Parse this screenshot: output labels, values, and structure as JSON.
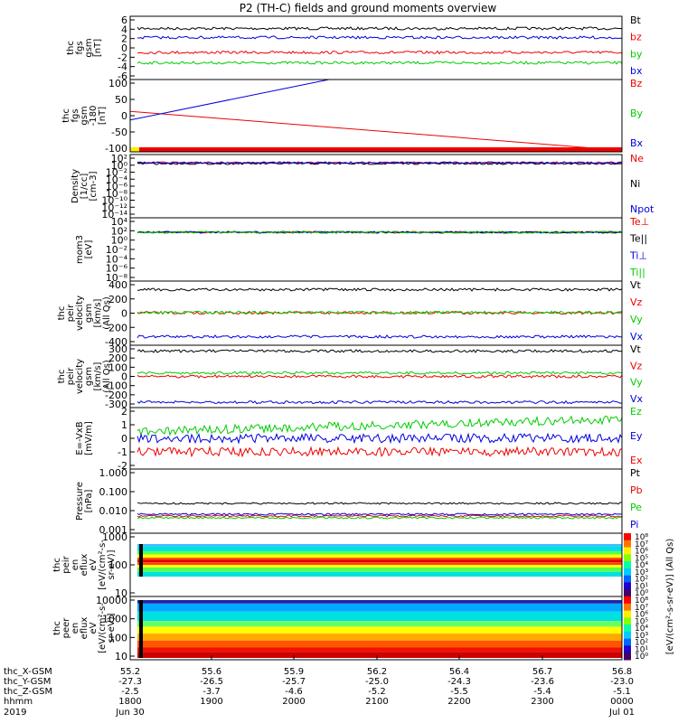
{
  "title": "P2 (TH-C) fields and ground moments overview",
  "colors": {
    "black": "#000000",
    "red": "#ee0000",
    "green": "#00cc00",
    "blue": "#0000dd",
    "yellow": "#ffee00"
  },
  "chart_data": [
    {
      "type": "line",
      "panel_label": [
        "thc",
        "fgs",
        "gsm",
        "[nT]"
      ],
      "ytick_labels": [
        "6",
        "4",
        "2",
        "0",
        "-2",
        "-4",
        "-6"
      ],
      "ylim": [
        -7,
        7
      ],
      "series": [
        {
          "name": "Bt",
          "color": "black",
          "level": 4.3
        },
        {
          "name": "bz",
          "color": "red",
          "level": -1
        },
        {
          "name": "by",
          "color": "green",
          "level": -3.3
        },
        {
          "name": "bx",
          "color": "blue",
          "level": 2.3
        }
      ]
    },
    {
      "type": "line",
      "panel_label": [
        "thc",
        "fgs",
        "gsm",
        "-180",
        "[nT]"
      ],
      "ytick_labels": [
        "100",
        "50",
        "0",
        "-50",
        "-100"
      ],
      "ylim": [
        -125,
        125
      ],
      "series": [
        {
          "name": "Bz",
          "color": "red",
          "trend": [
            15,
            -120
          ]
        },
        {
          "name": "By",
          "color": "green"
        },
        {
          "name": "Bx",
          "color": "blue",
          "trend": [
            -15,
            120
          ]
        }
      ]
    },
    {
      "type": "line",
      "panel_label": [
        "Density",
        "[1/cc]",
        "[cm-3]"
      ],
      "ytick_labels": [
        "10²",
        "10⁰",
        "10⁻²",
        "10⁻⁴",
        "10⁻⁶",
        "10⁻⁸",
        "10⁻¹⁰",
        "10⁻¹²",
        "10⁻¹⁴"
      ],
      "yscale": "log",
      "series": [
        {
          "name": "Ne",
          "color": "red"
        },
        {
          "name": "Ni",
          "color": "black"
        },
        {
          "name": "Npot",
          "color": "blue"
        }
      ]
    },
    {
      "type": "line",
      "panel_label": [
        "mom3",
        "[eV]"
      ],
      "ytick_labels": [
        "10⁴",
        "10²",
        "10⁰",
        "10⁻²",
        "10⁻⁴",
        "10⁻⁶",
        "10⁻⁸"
      ],
      "yscale": "log",
      "series": [
        {
          "name": "Te⊥",
          "color": "red"
        },
        {
          "name": "Te||",
          "color": "black"
        },
        {
          "name": "Ti⊥",
          "color": "blue"
        },
        {
          "name": "Ti||",
          "color": "green"
        }
      ]
    },
    {
      "type": "line",
      "panel_label": [
        "thc",
        "peir",
        "velocity",
        "gsm",
        "[km/s]",
        "(All Qs)"
      ],
      "ytick_labels": [
        "400",
        "200",
        "0",
        "-200",
        "-400"
      ],
      "ylim": [
        -450,
        450
      ],
      "series": [
        {
          "name": "Vt",
          "color": "black",
          "level": 330
        },
        {
          "name": "Vz",
          "color": "red",
          "level": 5
        },
        {
          "name": "Vy",
          "color": "green",
          "level": 10
        },
        {
          "name": "Vx",
          "color": "blue",
          "level": -330
        }
      ]
    },
    {
      "type": "line",
      "panel_label": [
        "thc",
        "peir",
        "velocity",
        "gsm",
        "[km/s]",
        "(All Qs)"
      ],
      "ytick_labels": [
        "300",
        "200",
        "100",
        "0",
        "-100",
        "-200",
        "-300"
      ],
      "ylim": [
        -320,
        320
      ],
      "series": [
        {
          "name": "Vt",
          "color": "black",
          "level": 260
        },
        {
          "name": "Vz",
          "color": "red",
          "level": 0
        },
        {
          "name": "Vy",
          "color": "green",
          "level": 35
        },
        {
          "name": "Vx",
          "color": "blue",
          "level": -265
        }
      ]
    },
    {
      "type": "line",
      "panel_label": [
        "E=-VxB",
        "[mV/m]"
      ],
      "ytick_labels": [
        "2",
        "1",
        "0",
        "-1",
        "-2"
      ],
      "ylim": [
        -2.3,
        2.3
      ],
      "series": [
        {
          "name": "Ez",
          "color": "green",
          "level": 0.5
        },
        {
          "name": "Ey",
          "color": "blue",
          "level": 0
        },
        {
          "name": "Ex",
          "color": "red",
          "level": -1
        }
      ]
    },
    {
      "type": "line",
      "panel_label": [
        "Pressure",
        "[nPa]"
      ],
      "ytick_labels": [
        "1.000",
        "0.100",
        "0.010",
        "0.001"
      ],
      "yscale": "log",
      "series": [
        {
          "name": "Pt",
          "color": "black"
        },
        {
          "name": "Pb",
          "color": "red"
        },
        {
          "name": "Pe",
          "color": "green"
        },
        {
          "name": "Pi",
          "color": "blue"
        }
      ]
    },
    {
      "type": "heatmap",
      "panel_label": [
        "thc",
        "peir",
        "en",
        "eflux",
        "eV",
        "[eV/(cm²-s-",
        "sr-eV)]"
      ],
      "ytick_labels": [
        "1000",
        "100",
        "10"
      ],
      "colorbar_label": "[eV/(cm²-s-sr-eV)] (All Qs)",
      "colorbar_ticks": [
        "10⁸",
        "10⁷",
        "10⁶",
        "10⁵",
        "10⁴",
        "10³",
        "10²",
        "10¹",
        "10⁰"
      ]
    },
    {
      "type": "heatmap",
      "panel_label": [
        "thc",
        "peer",
        "en",
        "eflux",
        "eV",
        "[eV/(cm²-s-",
        "sr-eV)]"
      ],
      "ytick_labels": [
        "10000",
        "1000",
        "100",
        "10"
      ],
      "colorbar_ticks": [
        "10⁸",
        "10⁷",
        "10⁶",
        "10⁵",
        "10⁴",
        "10³",
        "10²",
        "10¹",
        "10⁰"
      ]
    }
  ],
  "xaxis": {
    "rows": [
      {
        "label": "thc_X-GSM",
        "values": [
          "55.2",
          "55.6",
          "55.9",
          "56.2",
          "56.4",
          "56.7",
          "56.8"
        ]
      },
      {
        "label": "thc_Y-GSM",
        "values": [
          "-27.3",
          "-26.5",
          "-25.7",
          "-25.0",
          "-24.3",
          "-23.6",
          "-23.0"
        ]
      },
      {
        "label": "thc_Z-GSM",
        "values": [
          "-2.5",
          "-3.7",
          "-4.6",
          "-5.2",
          "-5.5",
          "-5.4",
          "-5.1"
        ]
      },
      {
        "label": "hhmm",
        "values": [
          "1800",
          "1900",
          "2000",
          "2100",
          "2200",
          "2300",
          "0000"
        ]
      }
    ],
    "year": "2019",
    "start_date": "Jun 30",
    "end_date": "Jul 01"
  }
}
